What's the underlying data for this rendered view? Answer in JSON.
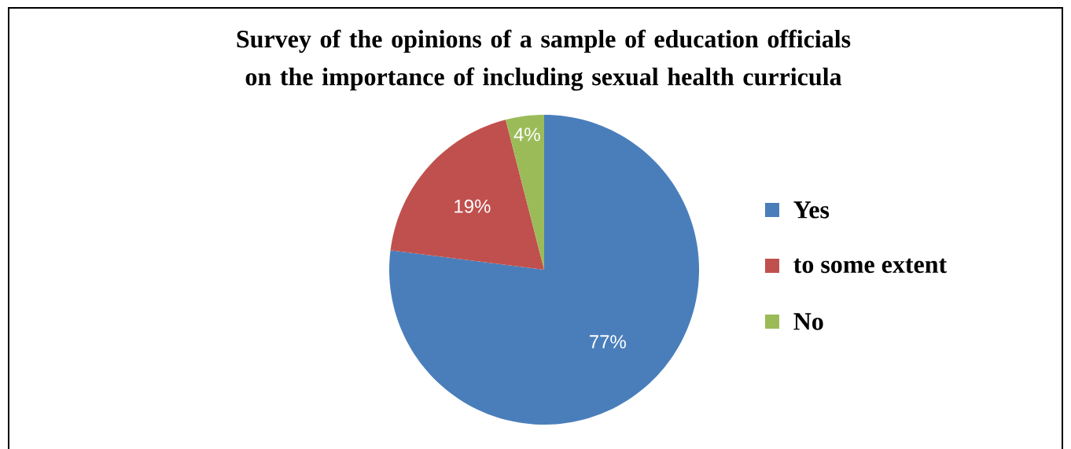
{
  "chart_data": {
    "type": "pie",
    "title": "Survey of the opinions of a sample of education officials on the importance of including sexual health curricula",
    "categories": [
      "Yes",
      "to some extent",
      "No"
    ],
    "values": [
      77,
      19,
      4
    ],
    "colors": [
      "#4a7ebb",
      "#c0504d",
      "#9bbb59"
    ],
    "value_labels": [
      "77%",
      "19%",
      "4%"
    ],
    "legend": "right"
  }
}
